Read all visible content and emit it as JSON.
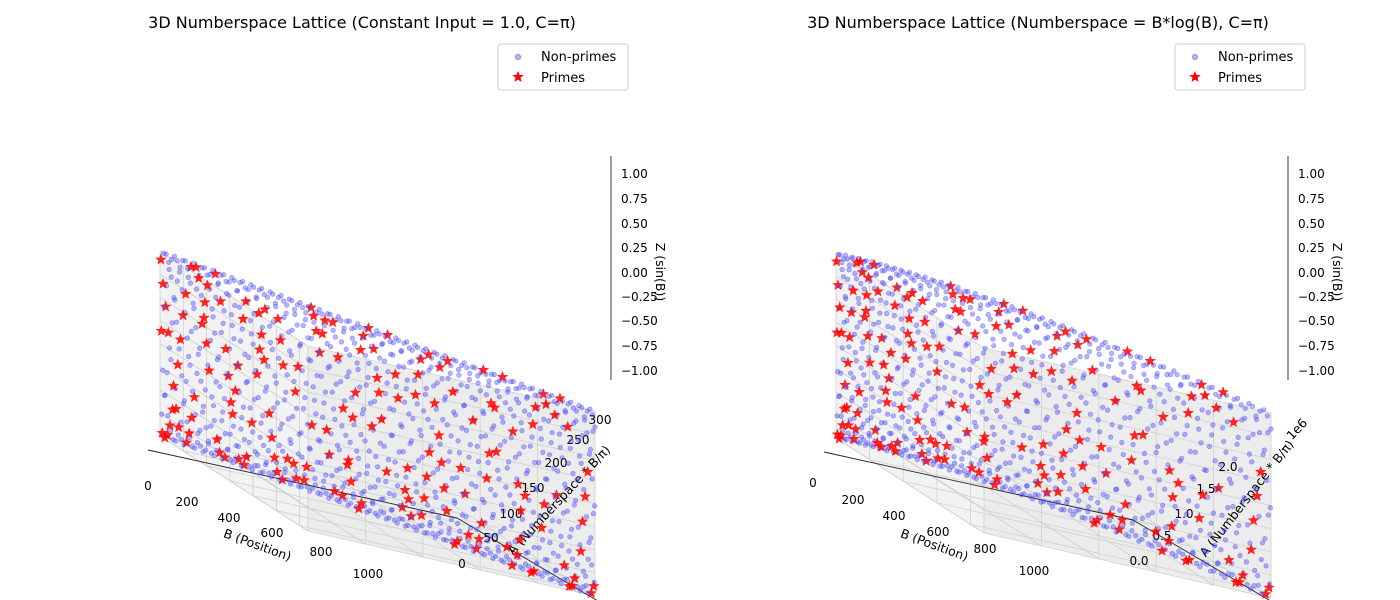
{
  "figure": {
    "legend_placement": "top-right",
    "colors": {
      "non_primes": "#4444ff",
      "primes": "#ff0000",
      "pane_side": "#f2f2f2",
      "pane_floor": "#f4f4f4",
      "grid": "#d0d0d0"
    }
  },
  "chart_data": [
    {
      "type": "scatter",
      "title": "3D Numberspace Lattice (Constant Input = 1.0, C=π)",
      "xlabel": "B (Position)",
      "ylabel": "A (Numberspace * B/π)",
      "zlabel": "Z (sin(B))",
      "offset_text": "",
      "xticks": [
        "0",
        "200",
        "400",
        "600",
        "800",
        "1000"
      ],
      "yticks": [
        "0",
        "50",
        "100",
        "150",
        "200",
        "250",
        "300"
      ],
      "zticks": [
        "−1.00",
        "−0.75",
        "−0.50",
        "−0.25",
        "0.00",
        "0.25",
        "0.50",
        "0.75",
        "1.00"
      ],
      "xlim": [
        0,
        1000
      ],
      "ylim": [
        0,
        318
      ],
      "zlim": [
        -1,
        1
      ],
      "grid": true,
      "legend": [
        "Non-primes",
        "Primes"
      ],
      "series": [
        {
          "name": "Non-primes",
          "marker": "circle",
          "color": "#4444ff",
          "alpha": 0.4,
          "rule": "B = 2..1000, A = B/π, Z = sin(B), B not prime"
        },
        {
          "name": "Primes",
          "marker": "star",
          "color": "#ff0000",
          "rule": "B prime in 2..1000, A = B/π, Z = sin(B)"
        }
      ]
    },
    {
      "type": "scatter",
      "title": "3D Numberspace Lattice (Numberspace = B*log(B), C=π)",
      "xlabel": "B (Position)",
      "ylabel": "A (Numberspace * B/π)",
      "zlabel": "Z (sin(B))",
      "offset_text": "1e6",
      "xticks": [
        "0",
        "200",
        "400",
        "600",
        "800",
        "1000"
      ],
      "yticks": [
        "0.0",
        "0.5",
        "1.0",
        "1.5",
        "2.0"
      ],
      "zticks": [
        "−1.00",
        "−0.75",
        "−0.50",
        "−0.25",
        "0.00",
        "0.25",
        "0.50",
        "0.75",
        "1.00"
      ],
      "xlim": [
        0,
        1000
      ],
      "ylim": [
        0,
        2.2
      ],
      "zlim": [
        -1,
        1
      ],
      "grid": true,
      "legend": [
        "Non-primes",
        "Primes"
      ],
      "series": [
        {
          "name": "Non-primes",
          "marker": "circle",
          "color": "#4444ff",
          "alpha": 0.4,
          "rule": "B = 2..1000, A = B*ln(B)*B/π (×1e6), Z = sin(B), B not prime"
        },
        {
          "name": "Primes",
          "marker": "star",
          "color": "#ff0000",
          "rule": "B prime in 2..1000, A = B*ln(B)*B/π (×1e6), Z = sin(B)"
        }
      ]
    }
  ]
}
